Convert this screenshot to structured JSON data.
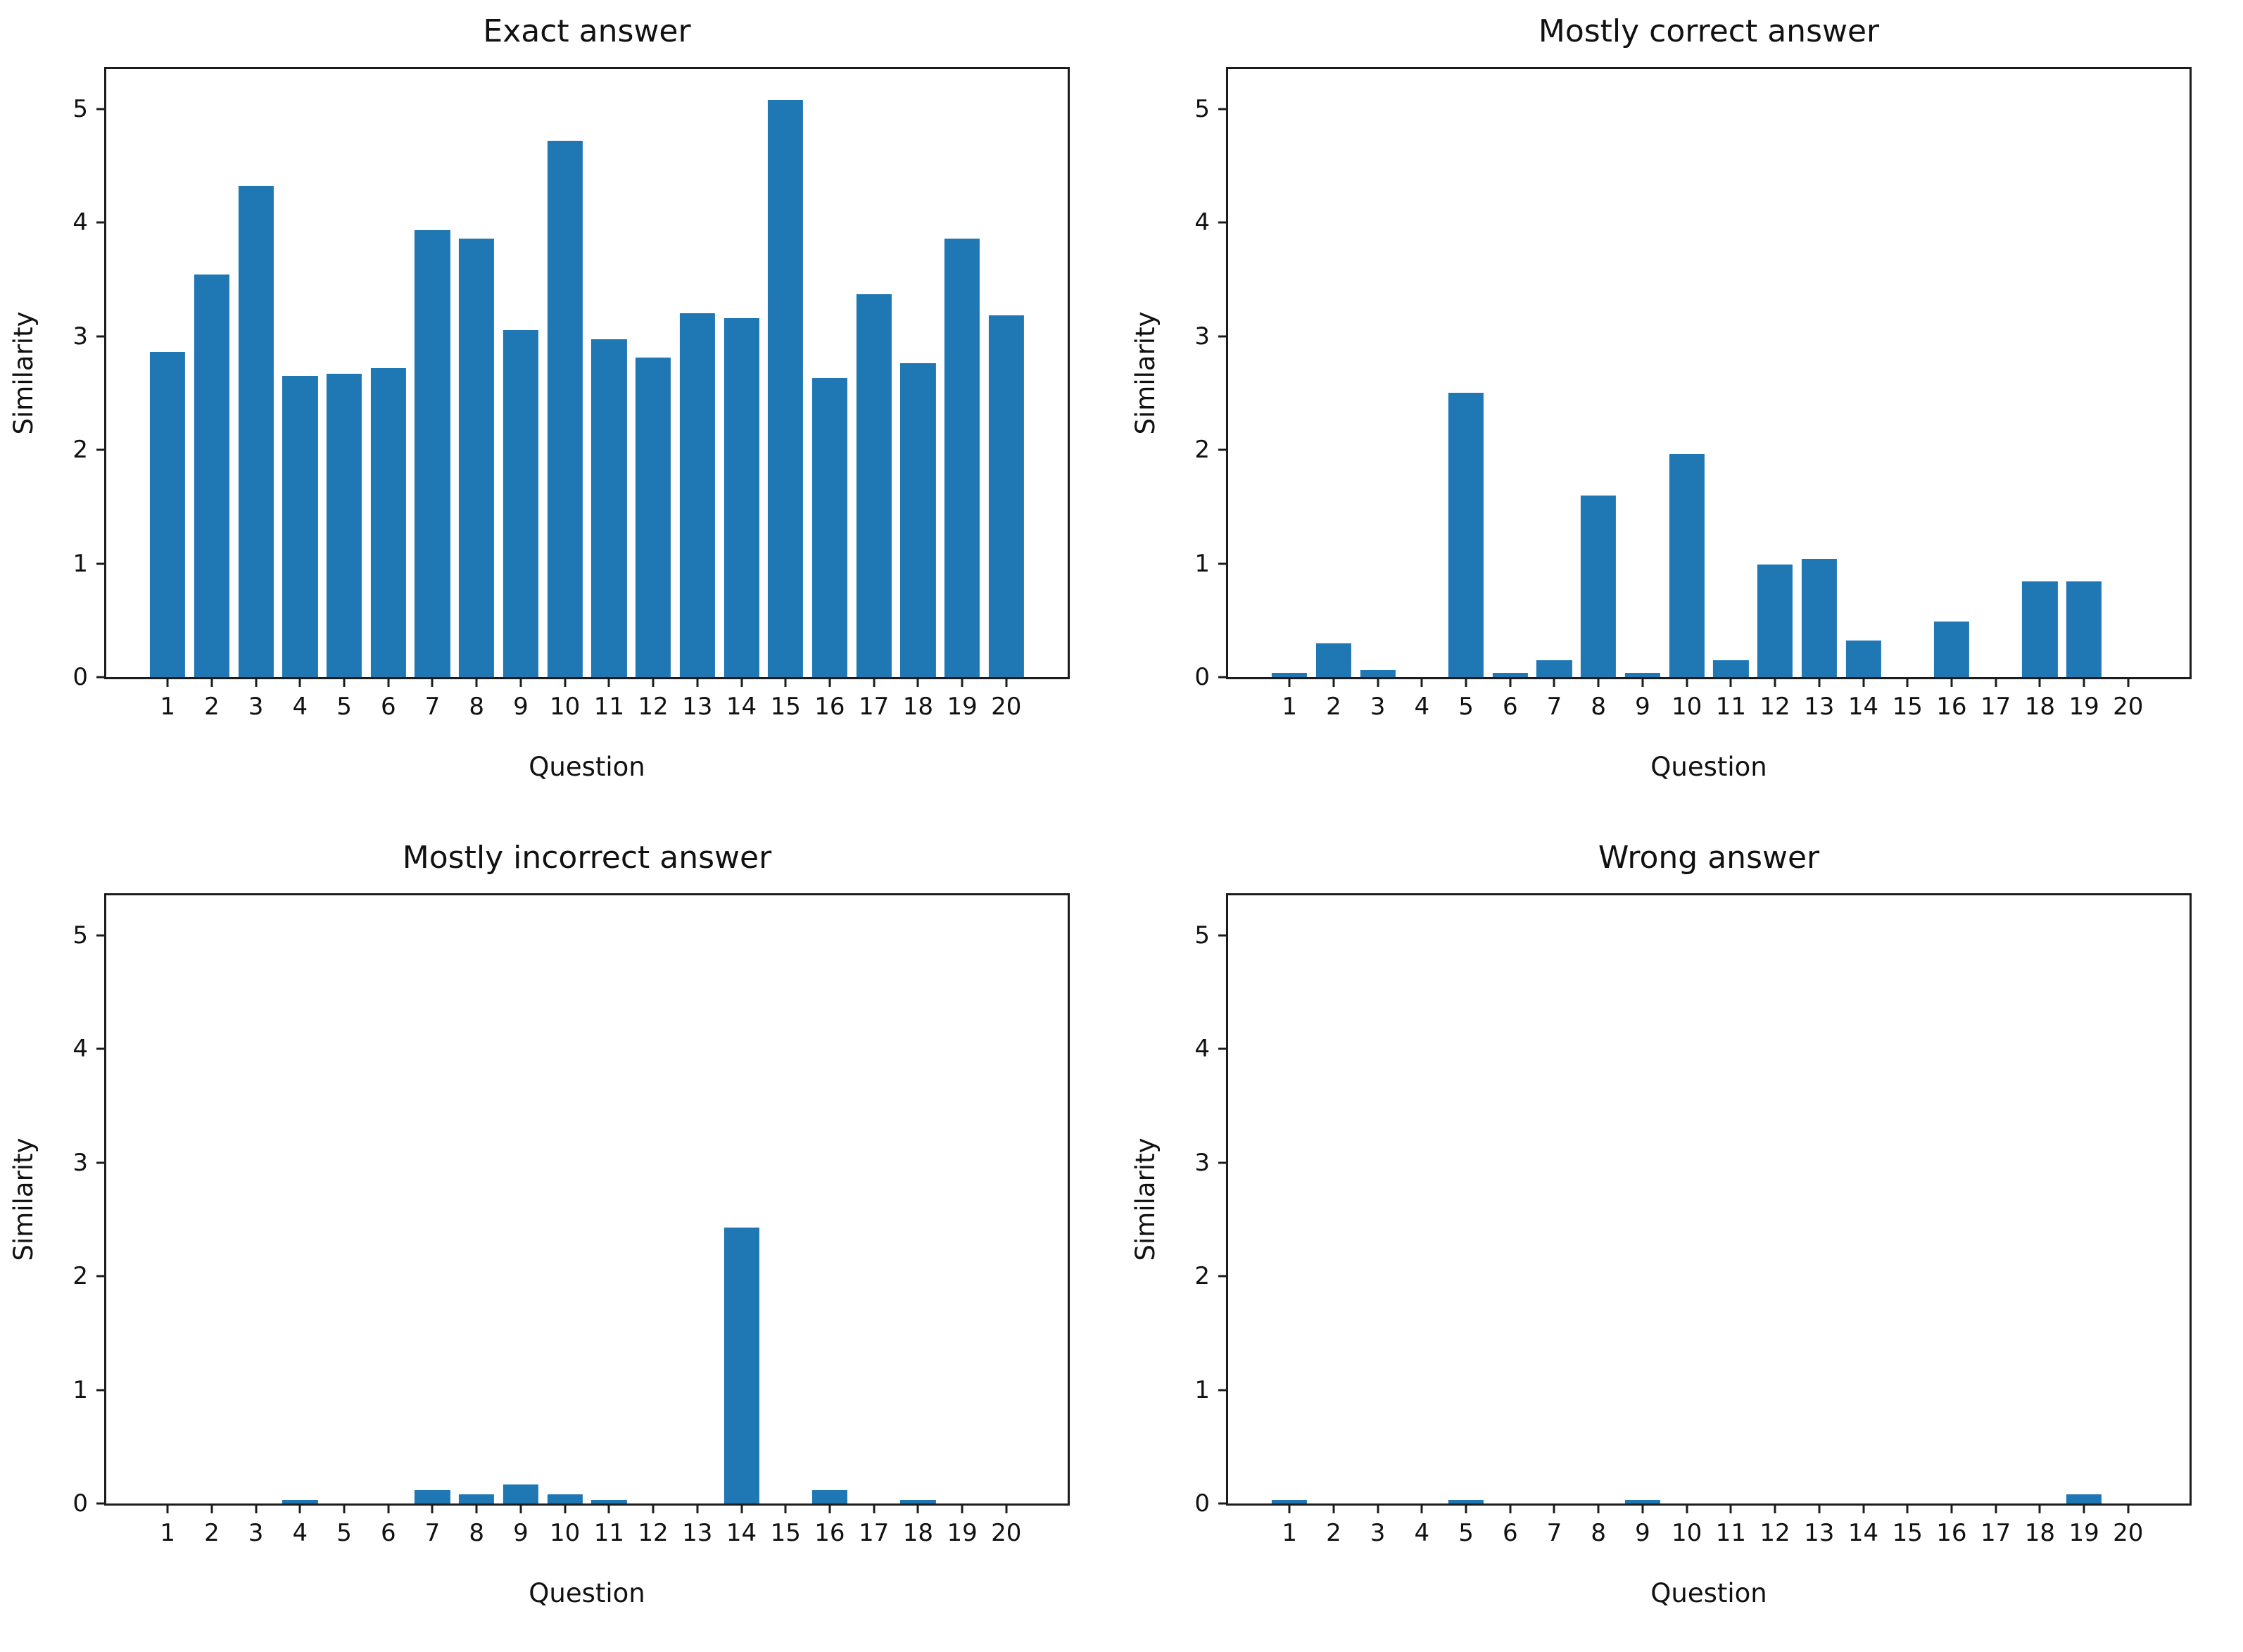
{
  "figure": {
    "background_color": "#ffffff",
    "bar_color": "#1f77b4",
    "axis_color": "#1c1c1c",
    "text_color": "#111111"
  },
  "chart_data": [
    {
      "type": "bar",
      "title": "Exact answer",
      "xlabel": "Question",
      "ylabel": "Similarity",
      "categories": [
        "1",
        "2",
        "3",
        "4",
        "5",
        "6",
        "7",
        "8",
        "9",
        "10",
        "11",
        "12",
        "13",
        "14",
        "15",
        "16",
        "17",
        "18",
        "19",
        "20"
      ],
      "values": [
        2.86,
        3.54,
        4.32,
        2.65,
        2.67,
        2.72,
        3.93,
        3.86,
        3.05,
        4.72,
        2.97,
        2.81,
        3.2,
        3.16,
        5.08,
        2.63,
        3.37,
        2.76,
        3.86,
        3.18
      ],
      "yticks": [
        0,
        1,
        2,
        3,
        4,
        5
      ],
      "ylim": [
        0,
        5.35
      ],
      "xlim": [
        -0.39,
        21.39
      ],
      "bar_width": 0.8,
      "grid": false,
      "legend": false
    },
    {
      "type": "bar",
      "title": "Mostly correct answer",
      "xlabel": "Question",
      "ylabel": "Similarity",
      "categories": [
        "1",
        "2",
        "3",
        "4",
        "5",
        "6",
        "7",
        "8",
        "9",
        "10",
        "11",
        "12",
        "13",
        "14",
        "15",
        "16",
        "17",
        "18",
        "19",
        "20"
      ],
      "values": [
        0.04,
        0.3,
        0.06,
        0,
        2.5,
        0.04,
        0.15,
        1.6,
        0.04,
        1.96,
        0.15,
        0.99,
        1.04,
        0.32,
        0,
        0.49,
        0,
        0.84,
        0.84,
        0
      ],
      "yticks": [
        0,
        1,
        2,
        3,
        4,
        5
      ],
      "ylim": [
        0,
        5.35
      ],
      "xlim": [
        -0.39,
        21.39
      ],
      "bar_width": 0.8,
      "grid": false,
      "legend": false
    },
    {
      "type": "bar",
      "title": "Mostly incorrect answer",
      "xlabel": "Question",
      "ylabel": "Similarity",
      "categories": [
        "1",
        "2",
        "3",
        "4",
        "5",
        "6",
        "7",
        "8",
        "9",
        "10",
        "11",
        "12",
        "13",
        "14",
        "15",
        "16",
        "17",
        "18",
        "19",
        "20"
      ],
      "values": [
        0,
        0,
        0,
        0.03,
        0,
        0,
        0.12,
        0.08,
        0.17,
        0.08,
        0.03,
        0,
        0,
        2.43,
        0,
        0.12,
        0,
        0.03,
        0,
        0
      ],
      "yticks": [
        0,
        1,
        2,
        3,
        4,
        5
      ],
      "ylim": [
        0,
        5.35
      ],
      "xlim": [
        -0.39,
        21.39
      ],
      "bar_width": 0.8,
      "grid": false,
      "legend": false
    },
    {
      "type": "bar",
      "title": "Wrong answer",
      "xlabel": "Question",
      "ylabel": "Similarity",
      "categories": [
        "1",
        "2",
        "3",
        "4",
        "5",
        "6",
        "7",
        "8",
        "9",
        "10",
        "11",
        "12",
        "13",
        "14",
        "15",
        "16",
        "17",
        "18",
        "19",
        "20"
      ],
      "values": [
        0.03,
        0,
        0,
        0,
        0.03,
        0,
        0,
        0,
        0.03,
        0,
        0,
        0,
        0,
        0,
        0,
        0,
        0,
        0,
        0.08,
        0
      ],
      "yticks": [
        0,
        1,
        2,
        3,
        4,
        5
      ],
      "ylim": [
        0,
        5.35
      ],
      "xlim": [
        -0.39,
        21.39
      ],
      "bar_width": 0.8,
      "grid": false,
      "legend": false
    }
  ]
}
